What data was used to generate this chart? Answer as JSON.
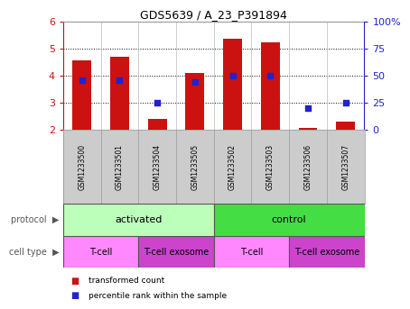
{
  "title": "GDS5639 / A_23_P391894",
  "samples": [
    "GSM1233500",
    "GSM1233501",
    "GSM1233504",
    "GSM1233505",
    "GSM1233502",
    "GSM1233503",
    "GSM1233506",
    "GSM1233507"
  ],
  "transformed_count": [
    4.55,
    4.7,
    2.38,
    4.08,
    5.35,
    5.22,
    2.05,
    2.28
  ],
  "percentile_rank": [
    46,
    46,
    25,
    44,
    50,
    50,
    20,
    25
  ],
  "ylim_left": [
    2,
    6
  ],
  "ylim_right": [
    0,
    100
  ],
  "yticks_left": [
    2,
    3,
    4,
    5,
    6
  ],
  "yticks_right": [
    0,
    25,
    50,
    75,
    100
  ],
  "yticklabels_right": [
    "0",
    "25",
    "50",
    "75",
    "100%"
  ],
  "bar_color": "#cc1111",
  "dot_color": "#2222cc",
  "bar_bottom": 2.0,
  "bar_width": 0.5,
  "protocol_groups": [
    {
      "label": "activated",
      "start": 0,
      "end": 4,
      "color": "#bbffbb"
    },
    {
      "label": "control",
      "start": 4,
      "end": 8,
      "color": "#44dd44"
    }
  ],
  "cell_type_groups": [
    {
      "label": "T-cell",
      "start": 0,
      "end": 2,
      "color": "#ff88ff"
    },
    {
      "label": "T-cell exosome",
      "start": 2,
      "end": 4,
      "color": "#cc44cc"
    },
    {
      "label": "T-cell",
      "start": 4,
      "end": 6,
      "color": "#ff88ff"
    },
    {
      "label": "T-cell exosome",
      "start": 6,
      "end": 8,
      "color": "#cc44cc"
    }
  ],
  "left_axis_color": "#cc1111",
  "right_axis_color": "#2222cc",
  "sample_area_bg": "#cccccc",
  "legend_items": [
    {
      "color": "#cc1111",
      "label": "transformed count"
    },
    {
      "color": "#2222cc",
      "label": "percentile rank within the sample"
    }
  ]
}
